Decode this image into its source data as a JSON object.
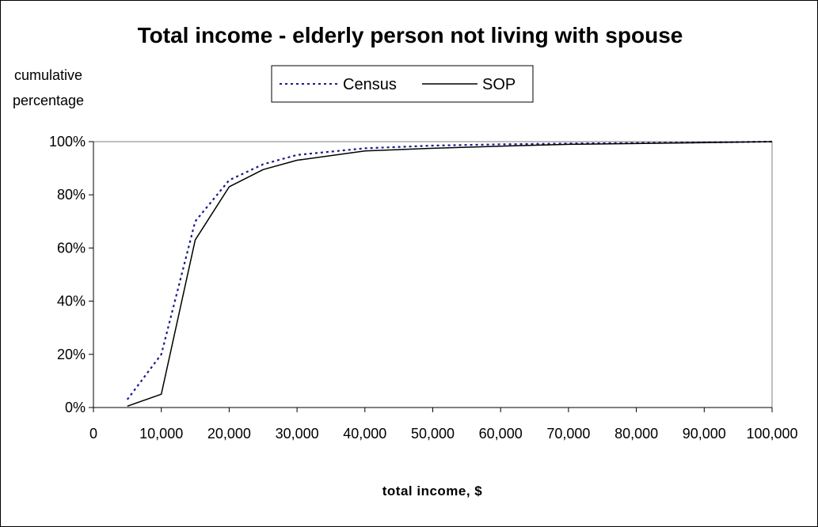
{
  "chart_data": {
    "type": "line",
    "title": "Total income - elderly person not living with spouse",
    "ylabel_line1": "cumulative",
    "ylabel_line2": "percentage",
    "xlabel": "total income, $",
    "xlim": [
      0,
      100000
    ],
    "ylim": [
      0,
      100
    ],
    "x_ticks": [
      0,
      10000,
      20000,
      30000,
      40000,
      50000,
      60000,
      70000,
      80000,
      90000,
      100000
    ],
    "x_tick_labels": [
      "0",
      "10,000",
      "20,000",
      "30,000",
      "40,000",
      "50,000",
      "60,000",
      "70,000",
      "80,000",
      "90,000",
      "100,000"
    ],
    "y_ticks": [
      0,
      20,
      40,
      60,
      80,
      100
    ],
    "y_tick_labels": [
      "0%",
      "20%",
      "40%",
      "60%",
      "80%",
      "100%"
    ],
    "grid": false,
    "legend_position": "top-center",
    "series": [
      {
        "name": "Census",
        "style": "dotted",
        "color": "#1a1a8c",
        "points": [
          [
            5000,
            3
          ],
          [
            10000,
            20
          ],
          [
            15000,
            70
          ],
          [
            20000,
            85.5
          ],
          [
            25000,
            91.5
          ],
          [
            30000,
            95
          ],
          [
            40000,
            97.5
          ],
          [
            50000,
            98.5
          ],
          [
            60000,
            99
          ],
          [
            70000,
            99.3
          ],
          [
            80000,
            99.5
          ],
          [
            90000,
            99.7
          ],
          [
            100000,
            100
          ]
        ]
      },
      {
        "name": "SOP",
        "style": "solid",
        "color": "#000000",
        "points": [
          [
            5000,
            0.5
          ],
          [
            10000,
            5
          ],
          [
            15000,
            63
          ],
          [
            20000,
            83
          ],
          [
            25000,
            89.5
          ],
          [
            30000,
            93
          ],
          [
            40000,
            96.5
          ],
          [
            50000,
            97.5
          ],
          [
            60000,
            98.3
          ],
          [
            70000,
            99
          ],
          [
            80000,
            99.3
          ],
          [
            90000,
            99.6
          ],
          [
            100000,
            100
          ]
        ]
      }
    ]
  }
}
